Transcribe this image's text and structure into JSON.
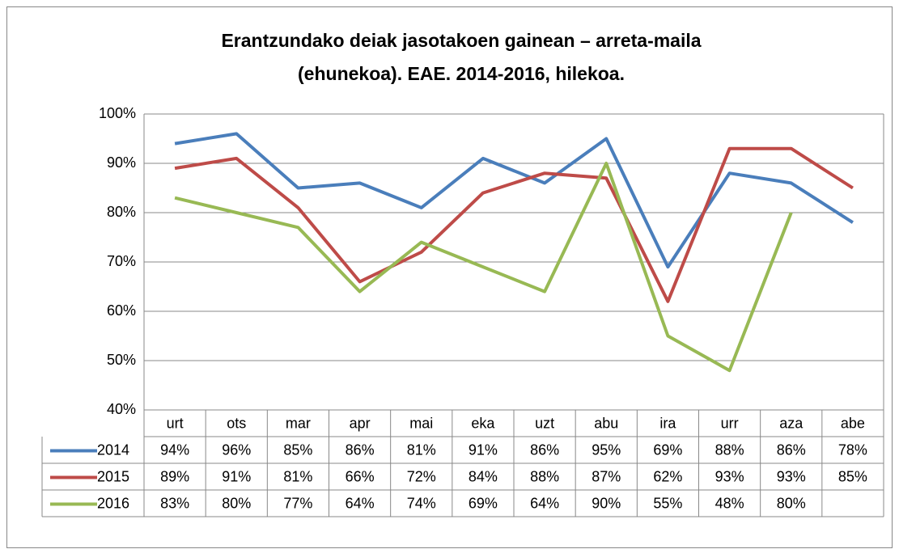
{
  "chart_data": {
    "type": "line",
    "title": [
      "Erantzundako deiak jasotakoen gainean – arreta-maila",
      "(ehunekoa). EAE. 2014-2016, hilekoa."
    ],
    "categories": [
      "urt",
      "ots",
      "mar",
      "apr",
      "mai",
      "eka",
      "uzt",
      "abu",
      "ira",
      "urr",
      "aza",
      "abe"
    ],
    "series": [
      {
        "name": "2014",
        "color": "#4a7ebb",
        "values": [
          94,
          96,
          85,
          86,
          81,
          91,
          86,
          95,
          69,
          88,
          86,
          78
        ],
        "value_labels": [
          "94%",
          "96%",
          "85%",
          "86%",
          "81%",
          "91%",
          "86%",
          "95%",
          "69%",
          "88%",
          "86%",
          "78%"
        ]
      },
      {
        "name": "2015",
        "color": "#be4b48",
        "values": [
          89,
          91,
          81,
          66,
          72,
          84,
          88,
          87,
          62,
          93,
          93,
          85
        ],
        "value_labels": [
          "89%",
          "91%",
          "81%",
          "66%",
          "72%",
          "84%",
          "88%",
          "87%",
          "62%",
          "93%",
          "93%",
          "85%"
        ]
      },
      {
        "name": "2016",
        "color": "#98b954",
        "values": [
          83,
          80,
          77,
          64,
          74,
          69,
          64,
          90,
          55,
          48,
          80,
          null
        ],
        "value_labels": [
          "83%",
          "80%",
          "77%",
          "64%",
          "74%",
          "69%",
          "64%",
          "90%",
          "55%",
          "48%",
          "80%",
          null
        ]
      }
    ],
    "ylim": [
      40,
      100
    ],
    "yticks": [
      {
        "value": 40,
        "label": "40%"
      },
      {
        "value": 50,
        "label": "50%"
      },
      {
        "value": 60,
        "label": "60%"
      },
      {
        "value": 70,
        "label": "70%"
      },
      {
        "value": 80,
        "label": "80%"
      },
      {
        "value": 90,
        "label": "90%"
      },
      {
        "value": 100,
        "label": "100%"
      }
    ],
    "grid": true
  }
}
